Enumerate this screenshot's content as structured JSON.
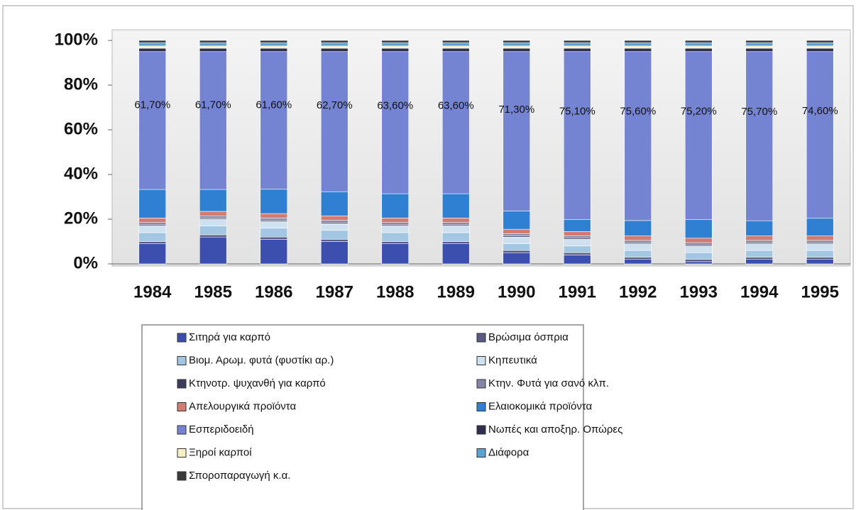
{
  "chart_data": {
    "type": "bar",
    "stacked": true,
    "categories": [
      "1984",
      "1985",
      "1986",
      "1987",
      "1988",
      "1989",
      "1990",
      "1991",
      "1992",
      "1993",
      "1994",
      "1995"
    ],
    "ylim": [
      0,
      100
    ],
    "yticks": [
      {
        "value": 0,
        "label": "0%"
      },
      {
        "value": 20,
        "label": "20%"
      },
      {
        "value": 40,
        "label": "40%"
      },
      {
        "value": 60,
        "label": "60%"
      },
      {
        "value": 80,
        "label": "80%"
      },
      {
        "value": 100,
        "label": "100%"
      }
    ],
    "series": [
      {
        "name": "Σιτηρά για καρπό",
        "color": "#3d4fae",
        "values": [
          9,
          12,
          11,
          10,
          9,
          9,
          5,
          4,
          2,
          1,
          2,
          2
        ]
      },
      {
        "name": "Βρώσιμα όσπρια",
        "color": "#5a5a82",
        "values": [
          1,
          1,
          1,
          1,
          1,
          1,
          1,
          1,
          1,
          1,
          1,
          1
        ]
      },
      {
        "name": "Βιομ. Αρωμ. φυτά (φυστίκι αρ.)",
        "color": "#a3c6e2",
        "values": [
          4,
          4,
          4,
          4,
          4,
          4,
          3,
          3,
          3,
          3,
          3,
          3
        ]
      },
      {
        "name": "Κηπευτικά",
        "color": "#cfe0ee",
        "values": [
          3,
          3,
          3,
          3,
          3,
          3,
          3,
          3,
          3,
          3,
          3,
          3
        ]
      },
      {
        "name": "Κτηνοτρ. ψυχανθή για καρπό",
        "color": "#3c3c5c",
        "values": [
          0.5,
          0.5,
          0.5,
          0.5,
          0.5,
          0.5,
          0.5,
          0.5,
          0.5,
          0.5,
          0.5,
          0.5
        ]
      },
      {
        "name": "Κτην. Φυτά για σανό κλπ.",
        "color": "#8585a5",
        "values": [
          1,
          1,
          1,
          1,
          1,
          1,
          1,
          1,
          1,
          1,
          1,
          1
        ]
      },
      {
        "name": "Απελουργικά προϊόντα",
        "color": "#d27b72",
        "values": [
          2,
          2,
          2,
          2,
          2,
          2,
          2,
          2,
          2,
          2,
          2,
          2
        ]
      },
      {
        "name": "Ελαιοκομικά προϊόντα",
        "color": "#2f80d2",
        "values": [
          12.8,
          9.8,
          10.9,
          10.8,
          10.9,
          10.9,
          8.2,
          5.4,
          6.9,
          8.3,
          6.8,
          7.9
        ]
      },
      {
        "name": "Εσπεριδοειδή",
        "color": "#7584d2",
        "values": [
          61.7,
          61.7,
          61.6,
          62.7,
          63.6,
          63.6,
          71.3,
          75.1,
          75.6,
          75.2,
          75.7,
          74.6
        ],
        "value_labels": [
          "61,70%",
          "61,70%",
          "61,60%",
          "62,70%",
          "63,60%",
          "63,60%",
          "71,30%",
          "75,10%",
          "75,60%",
          "75,20%",
          "75,70%",
          "74,60%"
        ]
      },
      {
        "name": "Νωπές και αποξηρ. Οπώρες",
        "color": "#2e2e4e",
        "values": [
          1.5,
          1.5,
          1.5,
          1.5,
          1.5,
          1.5,
          1.5,
          1.5,
          1.5,
          1.5,
          1.5,
          1.5
        ]
      },
      {
        "name": "Ξηροί καρποί",
        "color": "#f2f0c4",
        "values": [
          1,
          1,
          1,
          1,
          1,
          1,
          1,
          1,
          1,
          1,
          1,
          1
        ]
      },
      {
        "name": "Διάφορα",
        "color": "#5ea2d2",
        "values": [
          1.5,
          1.5,
          1.5,
          1.5,
          1.5,
          1.5,
          1.5,
          1.5,
          1.5,
          1.5,
          1.5,
          1.5
        ]
      },
      {
        "name": "Σποροπαραγωγή κ.α.",
        "color": "#3a3a3a",
        "values": [
          1,
          1,
          1,
          1,
          1,
          1,
          1,
          1,
          1,
          1,
          1,
          1
        ]
      }
    ]
  }
}
